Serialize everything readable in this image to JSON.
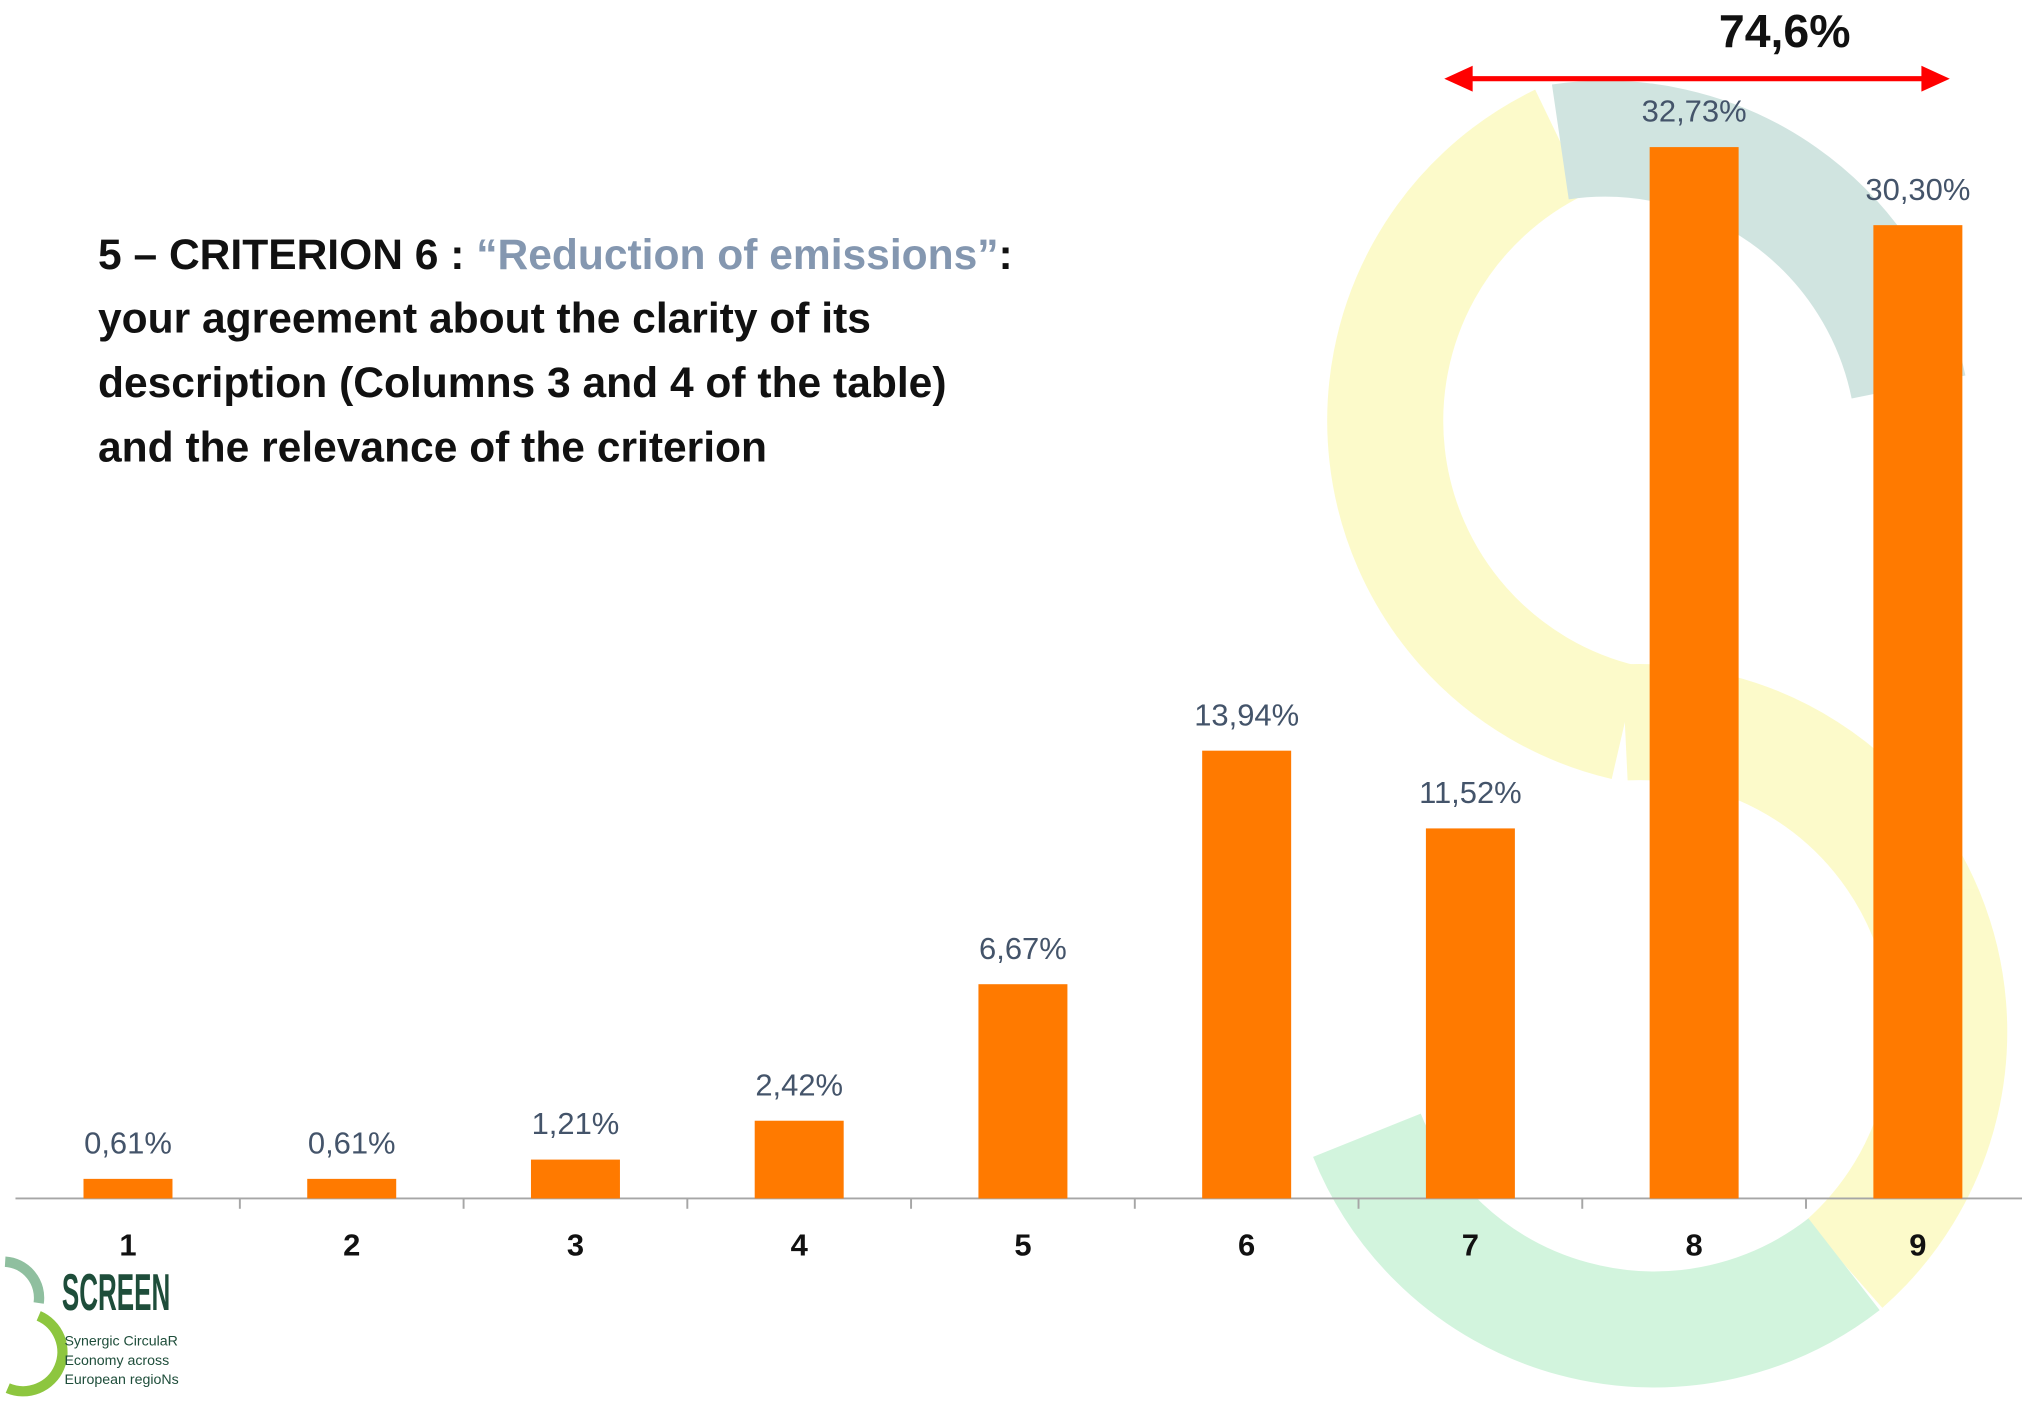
{
  "chart_data": {
    "type": "bar",
    "title": {
      "lead": "5 –  CRITERION 6 : ",
      "quote": "“Reduction of emissions”",
      "tail": ":",
      "lines": [
        "your agreement about the clarity of its",
        "description (Columns 3 and 4  of the table)",
        "and the relevance of the criterion"
      ]
    },
    "categories": [
      "1",
      "2",
      "3",
      "4",
      "5",
      "6",
      "7",
      "8",
      "9"
    ],
    "values": [
      0.61,
      0.61,
      1.21,
      2.42,
      6.67,
      13.94,
      11.52,
      32.73,
      30.3
    ],
    "value_labels": [
      "0,61%",
      "0,61%",
      "1,21%",
      "2,42%",
      "6,67%",
      "13,94%",
      "11,52%",
      "32,73%",
      "30,30%"
    ],
    "color": "#ff7a00",
    "ylim": [
      0,
      35
    ],
    "annotation": "74,6%",
    "logo": {
      "name": "SCREEN",
      "lines": [
        "Synergic CirculaR",
        "Economy across",
        "European regioNs"
      ]
    }
  }
}
